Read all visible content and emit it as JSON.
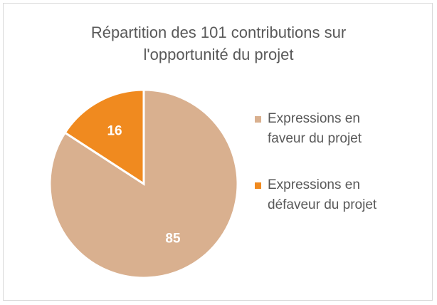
{
  "chart_data": {
    "type": "pie",
    "title_lines": [
      "Répartition des 101 contributions sur",
      "l'opportunité du projet"
    ],
    "slices": [
      {
        "label_lines": [
          "Expressions en",
          "faveur du projet"
        ],
        "value": 85,
        "color": "#D9B08F"
      },
      {
        "label_lines": [
          "Expressions en",
          "défaveur du projet"
        ],
        "value": 16,
        "color": "#F08A1F"
      }
    ],
    "legend_position": "right",
    "start_angle_deg": 0,
    "direction": "clockwise"
  }
}
